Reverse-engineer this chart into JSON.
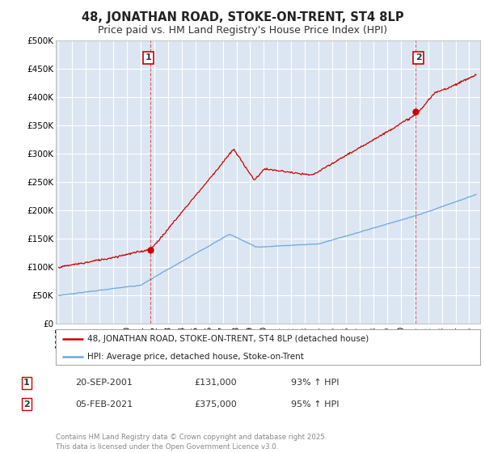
{
  "title": "48, JONATHAN ROAD, STOKE-ON-TRENT, ST4 8LP",
  "subtitle": "Price paid vs. HM Land Registry's House Price Index (HPI)",
  "ylabel_ticks": [
    "£0",
    "£50K",
    "£100K",
    "£150K",
    "£200K",
    "£250K",
    "£300K",
    "£350K",
    "£400K",
    "£450K",
    "£500K"
  ],
  "ytick_values": [
    0,
    50000,
    100000,
    150000,
    200000,
    250000,
    300000,
    350000,
    400000,
    450000,
    500000
  ],
  "ylim": [
    0,
    500000
  ],
  "xlim_start": 1994.8,
  "xlim_end": 2025.8,
  "red_line_color": "#cc0000",
  "blue_line_color": "#6fa8dc",
  "plot_bg_color": "#dce6f2",
  "marker1_date": 2001.72,
  "marker1_price": 131000,
  "marker2_date": 2021.09,
  "marker2_price": 375000,
  "legend_label_red": "48, JONATHAN ROAD, STOKE-ON-TRENT, ST4 8LP (detached house)",
  "legend_label_blue": "HPI: Average price, detached house, Stoke-on-Trent",
  "annotation1_label": "1",
  "annotation2_label": "2",
  "table_row1": [
    "1",
    "20-SEP-2001",
    "£131,000",
    "93% ↑ HPI"
  ],
  "table_row2": [
    "2",
    "05-FEB-2021",
    "£375,000",
    "95% ↑ HPI"
  ],
  "footer": "Contains HM Land Registry data © Crown copyright and database right 2025.\nThis data is licensed under the Open Government Licence v3.0.",
  "background_color": "#ffffff",
  "grid_color": "#ffffff",
  "title_fontsize": 10.5,
  "subtitle_fontsize": 9,
  "tick_fontsize": 7.5
}
